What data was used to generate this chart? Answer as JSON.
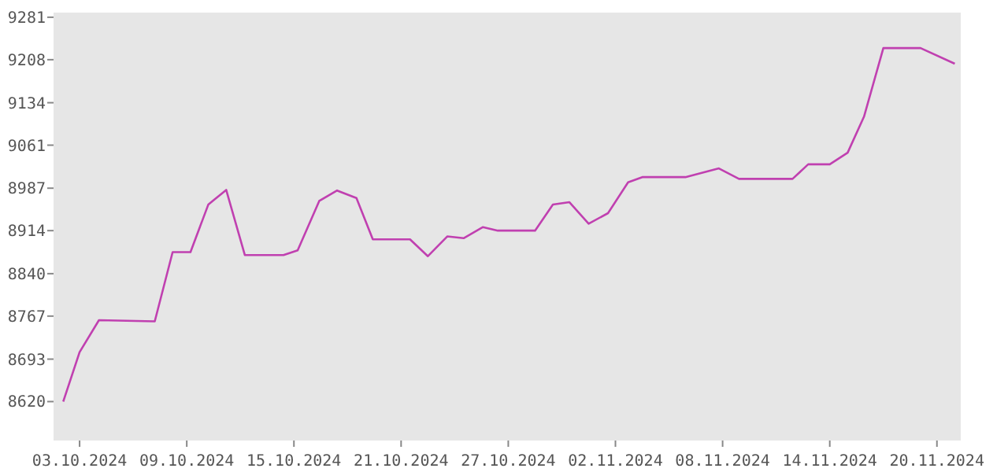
{
  "chart_data": {
    "type": "line",
    "xlim": [
      "2024-10-01T13:00",
      "2024-11-21T08:00"
    ],
    "ylim": [
      8553,
      9289
    ],
    "xticks": [
      {
        "value": "2024-10-03",
        "label": "03.10.2024"
      },
      {
        "value": "2024-10-09",
        "label": "09.10.2024"
      },
      {
        "value": "2024-10-15",
        "label": "15.10.2024"
      },
      {
        "value": "2024-10-21",
        "label": "21.10.2024"
      },
      {
        "value": "2024-10-27",
        "label": "27.10.2024"
      },
      {
        "value": "2024-11-02",
        "label": "02.11.2024"
      },
      {
        "value": "2024-11-08",
        "label": "08.11.2024"
      },
      {
        "value": "2024-11-14",
        "label": "14.11.2024"
      },
      {
        "value": "2024-11-20",
        "label": "20.11.2024"
      }
    ],
    "yticks": [
      8620,
      8693,
      8767,
      8840,
      8914,
      8987,
      9061,
      9134,
      9208,
      9281
    ],
    "grid": false,
    "marker": "none",
    "line_style": "solid",
    "series": [
      {
        "color": "#c040b0",
        "x": [
          "2024-10-02T02:00",
          "2024-10-03T00:00",
          "2024-10-04T02:00",
          "2024-10-07T05:00",
          "2024-10-08T05:00",
          "2024-10-09T05:00",
          "2024-10-10T05:00",
          "2024-10-11T05:00",
          "2024-10-12T06:00",
          "2024-10-14T10:00",
          "2024-10-15T05:00",
          "2024-10-16T10:00",
          "2024-10-17T10:00",
          "2024-10-18T12:00",
          "2024-10-19T10:00",
          "2024-10-21T12:00",
          "2024-10-22T12:00",
          "2024-10-23T14:00",
          "2024-10-24T12:00",
          "2024-10-25T14:00",
          "2024-10-26T10:00",
          "2024-10-28T12:00",
          "2024-10-29T12:00",
          "2024-10-30T10:00",
          "2024-10-31T12:00",
          "2024-11-01T14:00",
          "2024-11-02T17:00",
          "2024-11-03T12:00",
          "2024-11-05T22:00",
          "2024-11-07T19:00",
          "2024-11-08T22:00",
          "2024-11-11T22:00",
          "2024-11-12T19:00",
          "2024-11-14T00:00",
          "2024-11-15T00:00",
          "2024-11-15T22:00",
          "2024-11-17T00:00",
          "2024-11-19T02:00",
          "2024-11-21T00:00"
        ],
        "values": [
          8620,
          8705,
          8760,
          8758,
          8877,
          8877,
          8959,
          8984,
          8872,
          8872,
          8880,
          8965,
          8983,
          8970,
          8899,
          8899,
          8870,
          8904,
          8901,
          8920,
          8914,
          8914,
          8959,
          8963,
          8926,
          8944,
          8997,
          9006,
          9006,
          9021,
          9003,
          9003,
          9028,
          9028,
          9048,
          9110,
          9228,
          9228,
          9201
        ]
      }
    ]
  }
}
